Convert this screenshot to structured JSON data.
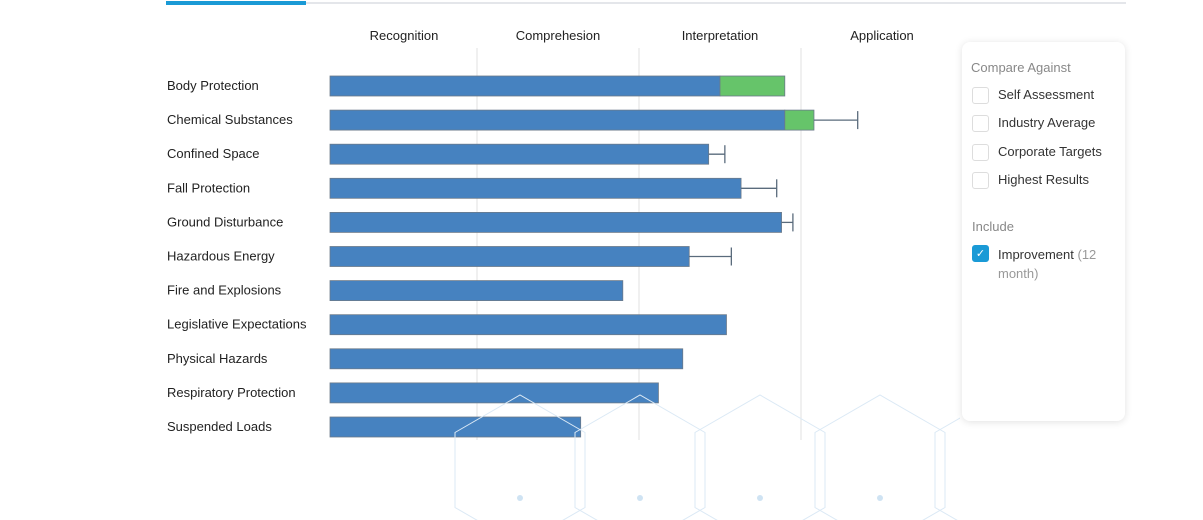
{
  "chart_data": {
    "type": "bar",
    "orientation": "horizontal",
    "stacked": true,
    "column_headers": [
      "Recognition",
      "Comprehesion",
      "Interpretation",
      "Application"
    ],
    "xlim": [
      0,
      4
    ],
    "categories": [
      "Body Protection",
      "Chemical Substances",
      "Confined Space",
      "Fall Protection",
      "Ground Disturbance",
      "Hazardous Energy",
      "Fire and Explosions",
      "Legislative Expectations",
      "Physical Hazards",
      "Respiratory Protection",
      "Suspended Loads"
    ],
    "series": [
      {
        "values": [
          2.5,
          2.9,
          2.43,
          2.63,
          2.88,
          2.31,
          1.9,
          2.54,
          2.27,
          2.12,
          1.64
        ],
        "color": "#4682c0"
      },
      {
        "values": [
          0.4,
          0.18,
          0,
          0,
          0,
          0,
          0,
          0,
          0,
          0,
          0
        ],
        "color": "#66c46a"
      }
    ],
    "error_upper": [
      null,
      3.35,
      2.53,
      2.85,
      2.95,
      2.57,
      null,
      null,
      null,
      null,
      null
    ],
    "grid": true
  },
  "panel": {
    "compare_title": "Compare Against",
    "compare": [
      {
        "label": "Self Assessment",
        "checked": false
      },
      {
        "label": "Industry Average",
        "checked": false
      },
      {
        "label": "Corporate Targets",
        "checked": false
      },
      {
        "label": "Highest Results",
        "checked": false
      }
    ],
    "include_title": "Include",
    "include_label": "Improvement",
    "include_note": "(12 month)",
    "include_checked": true,
    "accent": "#1a9ad6"
  }
}
